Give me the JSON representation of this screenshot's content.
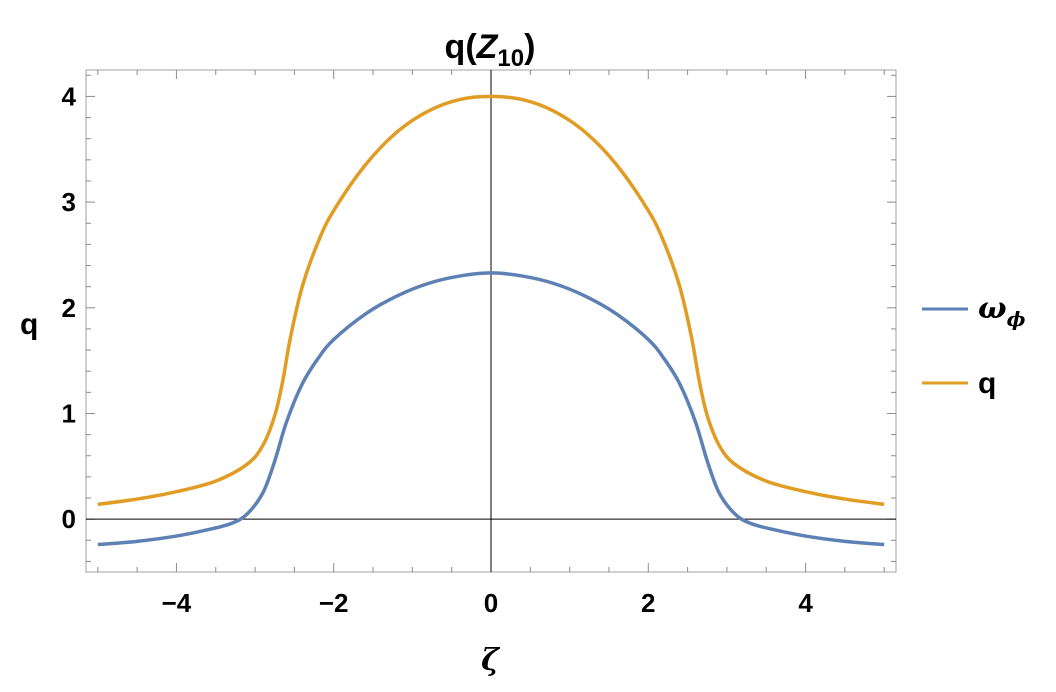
{
  "chart_data": {
    "type": "line",
    "title": {
      "prefix": "q(",
      "var": "Z",
      "sub": "10",
      "suffix": ")"
    },
    "xlabel": "ζ",
    "ylabel": "q",
    "xlim": [
      -5.15,
      5.15
    ],
    "ylim": [
      -0.5,
      4.25
    ],
    "x_ticks": [
      {
        "value": -4,
        "label": "−4"
      },
      {
        "value": -2,
        "label": "−2"
      },
      {
        "value": 0,
        "label": "0"
      },
      {
        "value": 2,
        "label": "2"
      },
      {
        "value": 4,
        "label": "4"
      }
    ],
    "y_ticks": [
      {
        "value": 0,
        "label": "0"
      },
      {
        "value": 1,
        "label": "1"
      },
      {
        "value": 2,
        "label": "2"
      },
      {
        "value": 3,
        "label": "3"
      },
      {
        "value": 4,
        "label": "4"
      }
    ],
    "grid": false,
    "legend_position": "right",
    "series": [
      {
        "name": "ω",
        "name_sub": "ϕ",
        "color": "#5e81b5",
        "x": [
          -5,
          -4.5,
          -4,
          -3.6,
          -3.3,
          -3.1,
          -2.9,
          -2.75,
          -2.6,
          -2.4,
          -2.2,
          -2,
          -1.6,
          -1.2,
          -0.8,
          -0.4,
          0,
          0.4,
          0.8,
          1.2,
          1.6,
          2,
          2.2,
          2.4,
          2.6,
          2.75,
          2.9,
          3.1,
          3.3,
          3.6,
          4,
          4.5,
          5
        ],
        "y": [
          -0.24,
          -0.21,
          -0.16,
          -0.1,
          -0.04,
          0.05,
          0.25,
          0.55,
          0.92,
          1.28,
          1.52,
          1.7,
          1.94,
          2.11,
          2.23,
          2.3,
          2.33,
          2.3,
          2.23,
          2.11,
          1.94,
          1.7,
          1.52,
          1.28,
          0.92,
          0.55,
          0.25,
          0.05,
          -0.04,
          -0.1,
          -0.16,
          -0.21,
          -0.24
        ]
      },
      {
        "name": "q",
        "color": "#e19c24",
        "x": [
          -5,
          -4.5,
          -4,
          -3.5,
          -3.1,
          -2.9,
          -2.75,
          -2.65,
          -2.55,
          -2.4,
          -2.2,
          -2,
          -1.6,
          -1.2,
          -0.8,
          -0.4,
          0,
          0.4,
          0.8,
          1.2,
          1.6,
          2,
          2.2,
          2.4,
          2.55,
          2.65,
          2.75,
          2.9,
          3.1,
          3.5,
          4,
          4.5,
          5
        ],
        "y": [
          0.14,
          0.19,
          0.26,
          0.36,
          0.52,
          0.7,
          0.98,
          1.3,
          1.72,
          2.2,
          2.62,
          2.92,
          3.35,
          3.66,
          3.86,
          3.97,
          4.0,
          3.97,
          3.86,
          3.66,
          3.35,
          2.92,
          2.62,
          2.2,
          1.72,
          1.3,
          0.98,
          0.7,
          0.52,
          0.36,
          0.26,
          0.19,
          0.14
        ]
      }
    ]
  }
}
